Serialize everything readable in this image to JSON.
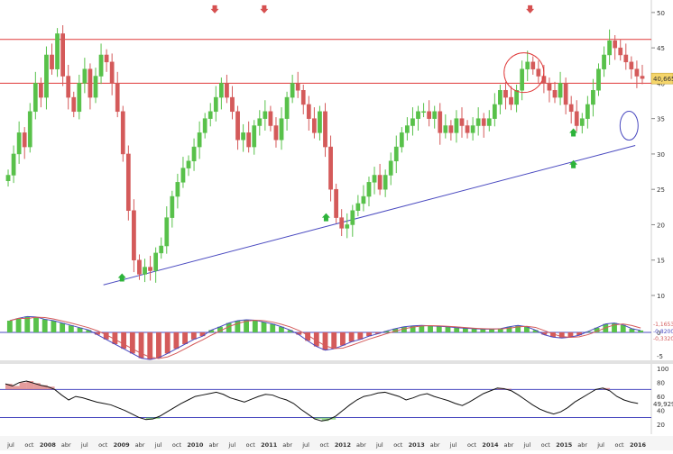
{
  "chart_data": [
    {
      "type": "candlestick",
      "panel": "price",
      "y_ticks": [
        "50",
        "45",
        "40",
        "35",
        "30",
        "25",
        "20",
        "15",
        "10"
      ],
      "ylim": [
        10,
        51
      ],
      "grid": false,
      "colors": {
        "up": "#58c14a",
        "down": "#d45a5a",
        "trend": "#4a4ac0",
        "level": "#e03a3a",
        "marker_up": "#2db33a",
        "marker_down": "#d65050"
      },
      "horizontal_levels": [
        46.2,
        40.0
      ],
      "trendline": {
        "from": [
          "2008-10",
          11.5
        ],
        "to": [
          "2015-12",
          31.2
        ]
      },
      "last_price_label": "40,665",
      "last_price": 40.665,
      "series_close": [
        27,
        30,
        33,
        31,
        36,
        40,
        38,
        44,
        42,
        47,
        41,
        38,
        36,
        40,
        42,
        38,
        41,
        44,
        43,
        40,
        36,
        30,
        22,
        15,
        13,
        14,
        13.5,
        16,
        17,
        21,
        24,
        26,
        28,
        29,
        31,
        33,
        35,
        36,
        38,
        40,
        38,
        36,
        32,
        33,
        31,
        34,
        35,
        36,
        34,
        32,
        35,
        38,
        40,
        39,
        37,
        35,
        33,
        36,
        31,
        25,
        21,
        19.5,
        20,
        22,
        23,
        24,
        26,
        27,
        25,
        27,
        29,
        31,
        33,
        34,
        35,
        36,
        36,
        35,
        36,
        33,
        34,
        33,
        35,
        34,
        33,
        34,
        35,
        34,
        35,
        37,
        39,
        38,
        37,
        39,
        42,
        43,
        42,
        41,
        40,
        39,
        38,
        40,
        37,
        36,
        34,
        35,
        37,
        39,
        42,
        44,
        46,
        45,
        44,
        43,
        42,
        41,
        40.665
      ],
      "sell_markers": [
        [
          "2010-04",
          50
        ],
        [
          "2010-12",
          50
        ],
        [
          "2014-07",
          50
        ]
      ],
      "buy_markers": [
        [
          "2009-01",
          13
        ],
        [
          "2011-10",
          21.5
        ],
        [
          "2015-02",
          33.5
        ],
        [
          "2015-02",
          29
        ]
      ],
      "annotations": [
        {
          "shape": "circle",
          "at": [
            "2014-06",
            41.5
          ]
        },
        {
          "shape": "ellipse",
          "at": [
            "2015-11",
            34
          ]
        }
      ]
    },
    {
      "type": "histogram",
      "panel": "oscillator",
      "y_ticks": [
        "0",
        "-5"
      ],
      "labels": [
        "-1,1653",
        "-0,8200",
        "-0,3320"
      ],
      "colors": {
        "positive": "#58c14a",
        "negative": "#d45a5a",
        "line": "#4a4ac0"
      },
      "values": [
        2.5,
        3,
        3.4,
        3.3,
        2.8,
        2.5,
        2,
        1.5,
        1,
        0.5,
        -0.5,
        -1.5,
        -2.5,
        -3.5,
        -4.5,
        -5.5,
        -5.8,
        -5.4,
        -4.5,
        -3.5,
        -2.5,
        -1.5,
        -0.8,
        0.5,
        1.2,
        2,
        2.5,
        2.7,
        2.6,
        2.2,
        1.8,
        1.2,
        0.5,
        -0.5,
        -1.8,
        -3,
        -3.8,
        -3.5,
        -2.8,
        -2,
        -1.5,
        -0.8,
        -0.3,
        0.3,
        0.8,
        1.2,
        1.4,
        1.5,
        1.4,
        1.3,
        1.2,
        1,
        0.9,
        0.8,
        0.7,
        0.7,
        0.8,
        1.2,
        1.5,
        1.2,
        0.5,
        -0.5,
        -1,
        -1.2,
        -1,
        -0.6,
        0.2,
        1,
        1.8,
        2,
        1.6,
        0.8,
        0.4
      ]
    },
    {
      "type": "line",
      "panel": "rsi",
      "y_ticks": [
        "100",
        "80",
        "60",
        "40",
        "20"
      ],
      "ylim": [
        10,
        100
      ],
      "levels": [
        70,
        30
      ],
      "value_label": "49,929",
      "colors": {
        "line": "#111111",
        "overbought_fill": "#d45a5a",
        "oversold_fill": "#58c14a"
      },
      "values": [
        78,
        75,
        80,
        82,
        79,
        76,
        74,
        70,
        62,
        55,
        60,
        58,
        55,
        52,
        50,
        48,
        44,
        40,
        35,
        30,
        27,
        28,
        32,
        38,
        44,
        50,
        55,
        60,
        62,
        64,
        66,
        63,
        58,
        55,
        52,
        56,
        60,
        63,
        62,
        58,
        55,
        50,
        42,
        35,
        28,
        25,
        27,
        32,
        40,
        48,
        55,
        60,
        62,
        65,
        66,
        63,
        60,
        55,
        58,
        62,
        64,
        60,
        57,
        54,
        50,
        47,
        52,
        58,
        64,
        68,
        72,
        71,
        68,
        62,
        55,
        48,
        42,
        38,
        35,
        38,
        44,
        52,
        58,
        64,
        70,
        72,
        68,
        60,
        55,
        52,
        50
      ]
    }
  ],
  "x_axis": {
    "labels": [
      "jul",
      "oct",
      "2008",
      "abr",
      "jul",
      "oct",
      "2009",
      "abr",
      "jul",
      "oct",
      "2010",
      "abr",
      "jul",
      "oct",
      "2011",
      "abr",
      "jul",
      "oct",
      "2012",
      "abr",
      "jul",
      "oct",
      "2013",
      "abr",
      "jul",
      "oct",
      "2014",
      "abr",
      "jul",
      "oct",
      "2015",
      "abr",
      "jul",
      "oct",
      "2016"
    ]
  }
}
